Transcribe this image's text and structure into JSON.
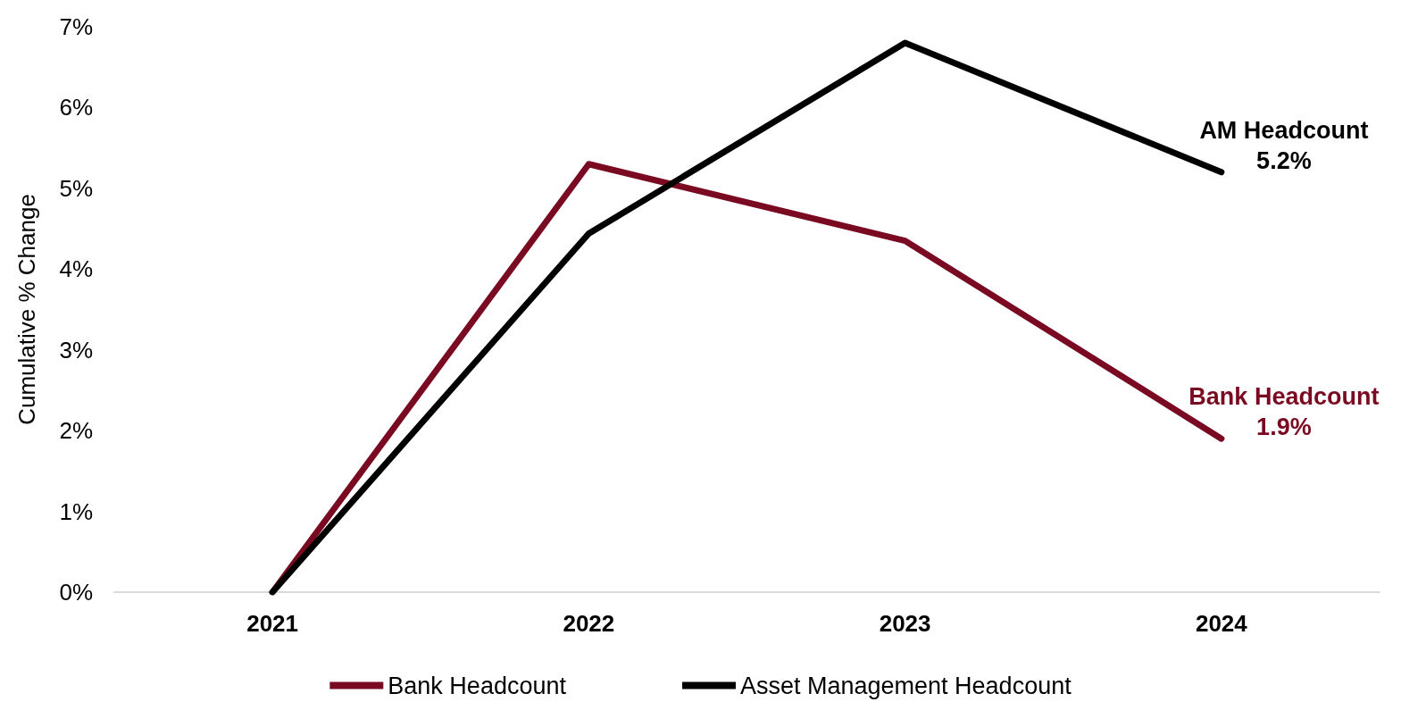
{
  "chart_data": {
    "type": "line",
    "ylabel": "Cumulative % Change",
    "categories": [
      "2021",
      "2022",
      "2023",
      "2024"
    ],
    "series": [
      {
        "name": "Bank Headcount",
        "color": "#7a0a22",
        "values": [
          0,
          5.3,
          4.35,
          1.9
        ]
      },
      {
        "name": "Asset Management Headcount",
        "color": "#000000",
        "values": [
          0,
          4.44,
          6.8,
          5.2
        ]
      }
    ],
    "ylim": [
      0,
      7
    ],
    "yticks": [
      {
        "value": 0,
        "label": "0%"
      },
      {
        "value": 1,
        "label": "1%"
      },
      {
        "value": 2,
        "label": "2%"
      },
      {
        "value": 3,
        "label": "3%"
      },
      {
        "value": 4,
        "label": "4%"
      },
      {
        "value": 5,
        "label": "5%"
      },
      {
        "value": 6,
        "label": "6%"
      },
      {
        "value": 7,
        "label": "7%"
      }
    ],
    "annotations": [
      {
        "text": "AM Headcount\n5.2%",
        "x": "2024",
        "y": 5.2
      },
      {
        "text": "Bank Headcount\n1.9%",
        "x": "2024",
        "y": 1.9
      }
    ],
    "grid": false,
    "legend": "bottom",
    "marker": "none",
    "line_style": "solid"
  }
}
